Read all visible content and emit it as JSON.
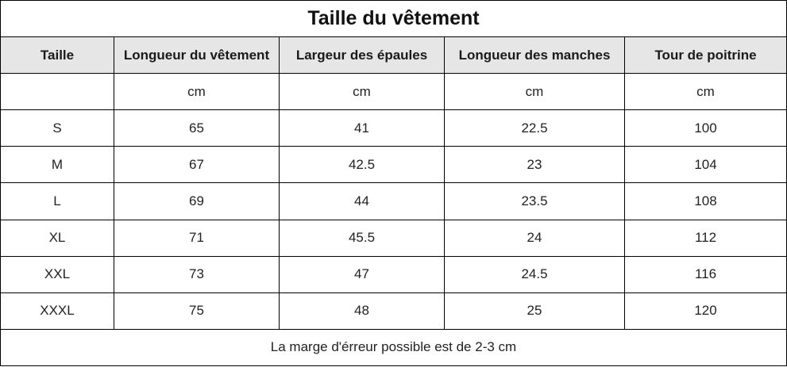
{
  "title": "Taille du vêtement",
  "columns": [
    "Taille",
    "Longueur du vêtement",
    "Largeur des épaules",
    "Longueur des manches",
    "Tour de poitrine"
  ],
  "units": [
    "",
    "cm",
    "cm",
    "cm",
    "cm"
  ],
  "rows": [
    [
      "S",
      "65",
      "41",
      "22.5",
      "100"
    ],
    [
      "M",
      "67",
      "42.5",
      "23",
      "104"
    ],
    [
      "L",
      "69",
      "44",
      "23.5",
      "108"
    ],
    [
      "XL",
      "71",
      "45.5",
      "24",
      "112"
    ],
    [
      "XXL",
      "73",
      "47",
      "24.5",
      "116"
    ],
    [
      "XXXL",
      "75",
      "48",
      "25",
      "120"
    ]
  ],
  "note": "La marge d'érreur possible est de 2-3 cm",
  "colors": {
    "header_background": "#e6e6e6",
    "border": "#000000",
    "text": "#222222"
  }
}
